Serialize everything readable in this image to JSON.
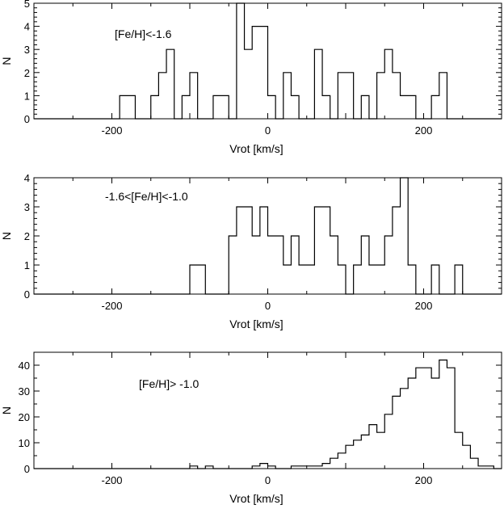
{
  "chart_data": [
    {
      "type": "histogram",
      "panel": "top",
      "annotation": "[Fe/H]<-1.6",
      "xlabel": "Vrot [km/s]",
      "ylabel": "N",
      "xlim": [
        -300,
        300
      ],
      "ylim": [
        0,
        5
      ],
      "xticks": [
        -200,
        0,
        200
      ],
      "xtick_labels": [
        "-200",
        "0",
        "200"
      ],
      "yticks": [
        0,
        1,
        2,
        3,
        4,
        5
      ],
      "ytick_labels": [
        "0",
        "1",
        "2",
        "3",
        "4",
        "5"
      ],
      "bin_width": 10,
      "bin_start": -300,
      "counts": [
        0,
        0,
        0,
        0,
        0,
        0,
        0,
        0,
        0,
        0,
        0,
        1,
        1,
        0,
        0,
        1,
        2,
        3,
        0,
        1,
        2,
        0,
        0,
        1,
        1,
        0,
        5,
        3,
        4,
        4,
        1,
        0,
        2,
        1,
        0,
        0,
        3,
        1,
        0,
        2,
        2,
        0,
        1,
        0,
        2,
        3,
        2,
        1,
        1,
        0,
        0,
        1,
        2,
        0,
        0,
        0,
        0,
        0,
        0,
        0
      ],
      "grid": false,
      "legend": "none"
    },
    {
      "type": "histogram",
      "panel": "middle",
      "annotation": "-1.6<[Fe/H]<-1.0",
      "xlabel": "Vrot [km/s]",
      "ylabel": "N",
      "xlim": [
        -300,
        300
      ],
      "ylim": [
        0,
        4
      ],
      "xticks": [
        -200,
        0,
        200
      ],
      "xtick_labels": [
        "-200",
        "0",
        "200"
      ],
      "yticks": [
        0,
        1,
        2,
        3,
        4
      ],
      "ytick_labels": [
        "0",
        "1",
        "2",
        "3",
        "4"
      ],
      "bin_width": 10,
      "bin_start": -300,
      "counts": [
        0,
        0,
        0,
        0,
        0,
        0,
        0,
        0,
        0,
        0,
        0,
        0,
        0,
        0,
        0,
        0,
        0,
        0,
        0,
        0,
        1,
        1,
        0,
        0,
        0,
        2,
        3,
        3,
        2,
        3,
        2,
        2,
        1,
        2,
        1,
        1,
        3,
        3,
        2,
        1,
        0,
        1,
        2,
        1,
        1,
        2,
        3,
        4,
        1,
        0,
        0,
        1,
        0,
        0,
        1,
        0,
        0,
        0,
        0,
        0
      ],
      "grid": false,
      "legend": "none"
    },
    {
      "type": "histogram",
      "panel": "bottom",
      "annotation": "[Fe/H]> -1.0",
      "xlabel": "Vrot [km/s]",
      "ylabel": "N",
      "xlim": [
        -300,
        300
      ],
      "ylim": [
        0,
        45
      ],
      "xticks": [
        -200,
        0,
        200
      ],
      "xtick_labels": [
        "-200",
        "0",
        "200"
      ],
      "yticks": [
        0,
        10,
        20,
        30,
        40
      ],
      "ytick_labels": [
        "0",
        "10",
        "20",
        "30",
        "40"
      ],
      "bin_width": 10,
      "bin_start": -300,
      "counts": [
        0,
        0,
        0,
        0,
        0,
        0,
        0,
        0,
        0,
        0,
        0,
        0,
        0,
        0,
        0,
        0,
        0,
        0,
        0,
        0,
        1,
        0,
        1,
        0,
        0,
        0,
        0,
        0,
        1,
        2,
        1,
        0,
        0,
        1,
        1,
        1,
        1,
        2,
        4,
        6,
        9,
        11,
        13,
        17,
        14,
        21,
        28,
        31,
        35,
        39,
        39,
        35,
        42,
        39,
        14,
        9,
        4,
        1,
        1,
        0
      ],
      "grid": false,
      "legend": "none"
    }
  ]
}
